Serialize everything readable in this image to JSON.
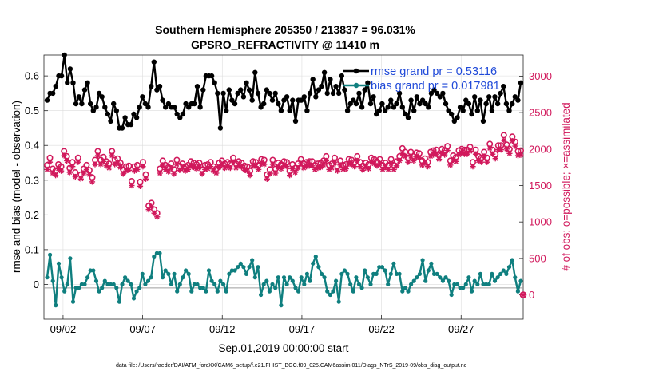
{
  "chart_data": {
    "type": "line",
    "title": "Southern Hemisphere 205350 / 213837 = 96.031%",
    "subtitle": "GPSRO_REFRACTIVITY @ 11410 m",
    "xlabel": "Sep.01,2019 00:00:00 start",
    "ylabel_left": "rmse and bias (model - observation)",
    "ylabel_right": "# of obs: o=possible; ×=assimilated",
    "footer": "data file: /Users/raeder/DAI/ATM_forcXX/CAM6_setup/f.e21.FHIST_BGC.f09_025.CAM6assim.011/Diags_NTrS_2019-09/obs_diag_output.nc",
    "x_ticks": [
      "09/02",
      "09/07",
      "09/12",
      "09/17",
      "09/22",
      "09/27"
    ],
    "y_left_ticks": [
      "0",
      "0.1",
      "0.2",
      "0.3",
      "0.4",
      "0.5",
      "0.6"
    ],
    "y_right_ticks": [
      "0",
      "500",
      "1000",
      "1500",
      "2000",
      "2500",
      "3000"
    ],
    "ylim_left": [
      -0.1,
      0.66
    ],
    "ylim_right": [
      -333,
      3289
    ],
    "xlim": [
      0.8,
      30.9
    ],
    "grid": true,
    "legend_position": "top-right",
    "colors": {
      "rmse": "#000000",
      "bias": "#0f7f7f",
      "obs": "#d1195c"
    },
    "series": [
      {
        "name": "rmse grand pr = 0.53116",
        "axis": "left",
        "values": [
          0.53,
          0.55,
          0.55,
          0.57,
          0.6,
          0.6,
          0.66,
          0.58,
          0.62,
          0.58,
          0.52,
          0.54,
          0.52,
          0.56,
          0.58,
          0.52,
          0.5,
          0.51,
          0.55,
          0.54,
          0.51,
          0.49,
          0.47,
          0.52,
          0.5,
          0.45,
          0.45,
          0.48,
          0.46,
          0.46,
          0.49,
          0.48,
          0.51,
          0.54,
          0.52,
          0.51,
          0.57,
          0.64,
          0.56,
          0.57,
          0.53,
          0.51,
          0.52,
          0.51,
          0.51,
          0.49,
          0.48,
          0.49,
          0.52,
          0.51,
          0.52,
          0.52,
          0.57,
          0.51,
          0.56,
          0.6,
          0.6,
          0.6,
          0.58,
          0.55,
          0.45,
          0.55,
          0.5,
          0.56,
          0.53,
          0.52,
          0.55,
          0.56,
          0.54,
          0.58,
          0.56,
          0.53,
          0.61,
          0.55,
          0.51,
          0.52,
          0.56,
          0.55,
          0.53,
          0.55,
          0.52,
          0.5,
          0.53,
          0.54,
          0.5,
          0.53,
          0.47,
          0.53,
          0.53,
          0.54,
          0.5,
          0.55,
          0.59,
          0.54,
          0.56,
          0.57,
          0.61,
          0.55,
          0.59,
          0.55,
          0.57,
          0.55,
          0.6,
          0.56,
          0.5,
          0.52,
          0.53,
          0.52,
          0.55,
          0.51,
          0.56,
          0.58,
          0.52,
          0.54,
          0.49,
          0.5,
          0.52,
          0.5,
          0.51,
          0.53,
          0.51,
          0.52,
          0.55,
          0.51,
          0.49,
          0.48,
          0.53,
          0.5,
          0.54,
          0.52,
          0.53,
          0.52,
          0.51,
          0.55,
          0.56,
          0.55,
          0.54,
          0.55,
          0.52,
          0.5,
          0.49,
          0.47,
          0.48,
          0.51,
          0.5,
          0.53,
          0.52,
          0.49,
          0.54,
          0.5,
          0.53,
          0.47,
          0.52,
          0.54,
          0.5,
          0.54,
          0.52,
          0.55,
          0.57,
          0.52,
          0.5,
          0.52,
          0.54,
          0.53,
          0.58
        ]
      },
      {
        "name": "bias grand pr = 0.017981",
        "axis": "left",
        "values": [
          0.02,
          0.085,
          0.01,
          -0.06,
          0.06,
          0.02,
          -0.02,
          0.0,
          0.075,
          -0.05,
          -0.01,
          -0.01,
          0.0,
          0.0,
          0.02,
          0.04,
          0.04,
          0.01,
          -0.02,
          -0.01,
          0.01,
          0.0,
          0.0,
          0.0,
          -0.01,
          -0.05,
          0.0,
          0.02,
          0.01,
          0.0,
          -0.04,
          -0.02,
          -0.01,
          0.03,
          0.0,
          0.01,
          0.02,
          0.08,
          0.09,
          0.09,
          0.02,
          0.04,
          0.03,
          0.0,
          0.03,
          -0.02,
          0.0,
          0.02,
          0.04,
          0.03,
          -0.02,
          0.0,
          0.0,
          -0.01,
          -0.01,
          -0.02,
          0.04,
          0.01,
          0.0,
          -0.02,
          0.01,
          0.0,
          -0.02,
          0.03,
          0.04,
          0.04,
          0.05,
          0.06,
          0.05,
          0.03,
          0.05,
          0.07,
          0.02,
          0.05,
          -0.03,
          0.0,
          0.01,
          -0.02,
          0.0,
          -0.01,
          0.02,
          -0.06,
          0.02,
          0.0,
          0.02,
          0.01,
          -0.01,
          -0.02,
          0.02,
          0.0,
          0.03,
          0.01,
          0.06,
          0.08,
          0.05,
          0.03,
          0.02,
          -0.02,
          -0.03,
          -0.02,
          0.01,
          -0.05,
          0.03,
          0.04,
          0.03,
          0.0,
          -0.02,
          0.02,
          0.0,
          -0.01,
          0.04,
          0.02,
          0.0,
          0.03,
          0.03,
          0.05,
          0.05,
          0.04,
          0.0,
          0.03,
          0.06,
          0.03,
          0.03,
          -0.02,
          -0.01,
          -0.02,
          0.0,
          0.01,
          0.02,
          0.03,
          0.07,
          0.01,
          0.04,
          0.06,
          0.03,
          0.03,
          0.02,
          0.01,
          0.02,
          0.01,
          -0.03,
          0.0,
          0.0,
          -0.01,
          -0.01,
          0.0,
          0.02,
          -0.02,
          0.01,
          0.0,
          0.03,
          0.0,
          0.0,
          0.0,
          0.03,
          0.01,
          0.02,
          0.03,
          0.04,
          0.03,
          0.05,
          0.07,
          0.02,
          -0.02,
          0.01
        ]
      },
      {
        "name": "possible",
        "axis": "right",
        "values": [
          1780,
          1880,
          1730,
          1700,
          1790,
          1760,
          1970,
          1900,
          1740,
          1820,
          1680,
          1880,
          1650,
          1730,
          1780,
          1710,
          1610,
          1850,
          1970,
          1850,
          1890,
          1830,
          1800,
          1970,
          1850,
          1870,
          1810,
          1720,
          1760,
          1770,
          1560,
          1760,
          1780,
          1550,
          1820,
          1650,
          1220,
          1260,
          1170,
          1120,
          1730,
          1840,
          1780,
          1750,
          1800,
          1720,
          1850,
          1770,
          1800,
          1760,
          1780,
          1830,
          1810,
          1790,
          1810,
          1720,
          1780,
          1790,
          1820,
          1760,
          1730,
          1810,
          1840,
          1800,
          1820,
          1800,
          1880,
          1800,
          1830,
          1810,
          1770,
          1760,
          1700,
          1830,
          1820,
          1780,
          1860,
          1850,
          1650,
          1720,
          1850,
          1730,
          1810,
          1790,
          1830,
          1820,
          1700,
          1790,
          1740,
          1800,
          1860,
          1800,
          1820,
          1830,
          1830,
          1780,
          1800,
          1810,
          1840,
          1900,
          1780,
          1800,
          1880,
          1760,
          1840,
          1780,
          1790,
          1860,
          1850,
          1820,
          1900,
          1820,
          1770,
          1810,
          1790,
          1880,
          1860,
          1830,
          1860,
          1780,
          1810,
          1780,
          1860,
          1780,
          1830,
          1900,
          2010,
          1960,
          1880,
          1960,
          1900,
          1950,
          1940,
          1840,
          1870,
          1820,
          1960,
          1980,
          1990,
          1920,
          2000,
          1980,
          2040,
          1840,
          1910,
          1890,
          1980,
          2000,
          1990,
          1990,
          2030,
          1820,
          1990,
          1900,
          1880,
          1960,
          1880,
          2070,
          1990,
          1930,
          2050,
          2050,
          2190,
          2060,
          2000,
          2170,
          2100,
          1970,
          1980
        ]
      },
      {
        "name": "assimilated",
        "axis": "right",
        "values": [
          1720,
          1820,
          1670,
          1640,
          1730,
          1700,
          1910,
          1840,
          1680,
          1760,
          1620,
          1820,
          1590,
          1670,
          1720,
          1650,
          1550,
          1790,
          1910,
          1790,
          1830,
          1770,
          1740,
          1910,
          1790,
          1810,
          1750,
          1660,
          1700,
          1710,
          1500,
          1700,
          1720,
          1490,
          1760,
          1590,
          1170,
          1210,
          1120,
          1070,
          1670,
          1780,
          1720,
          1690,
          1740,
          1660,
          1790,
          1710,
          1740,
          1700,
          1720,
          1770,
          1750,
          1730,
          1750,
          1660,
          1720,
          1730,
          1760,
          1700,
          1670,
          1750,
          1780,
          1740,
          1760,
          1740,
          1820,
          1740,
          1770,
          1750,
          1710,
          1700,
          1640,
          1770,
          1760,
          1720,
          1800,
          1790,
          1590,
          1660,
          1790,
          1670,
          1750,
          1730,
          1770,
          1760,
          1640,
          1730,
          1680,
          1740,
          1800,
          1740,
          1760,
          1770,
          1770,
          1720,
          1740,
          1750,
          1780,
          1840,
          1720,
          1740,
          1820,
          1700,
          1780,
          1720,
          1730,
          1800,
          1790,
          1760,
          1840,
          1760,
          1710,
          1750,
          1730,
          1820,
          1800,
          1770,
          1800,
          1720,
          1750,
          1720,
          1800,
          1720,
          1770,
          1840,
          1940,
          1900,
          1820,
          1900,
          1840,
          1890,
          1880,
          1780,
          1810,
          1760,
          1900,
          1920,
          1930,
          1860,
          1940,
          1920,
          1980,
          1780,
          1850,
          1830,
          1920,
          1940,
          1930,
          1930,
          1970,
          1760,
          1930,
          1840,
          1820,
          1900,
          1820,
          2010,
          1930,
          1870,
          1990,
          1990,
          2120,
          2000,
          1940,
          2110,
          2040,
          1910,
          1920
        ]
      }
    ]
  }
}
